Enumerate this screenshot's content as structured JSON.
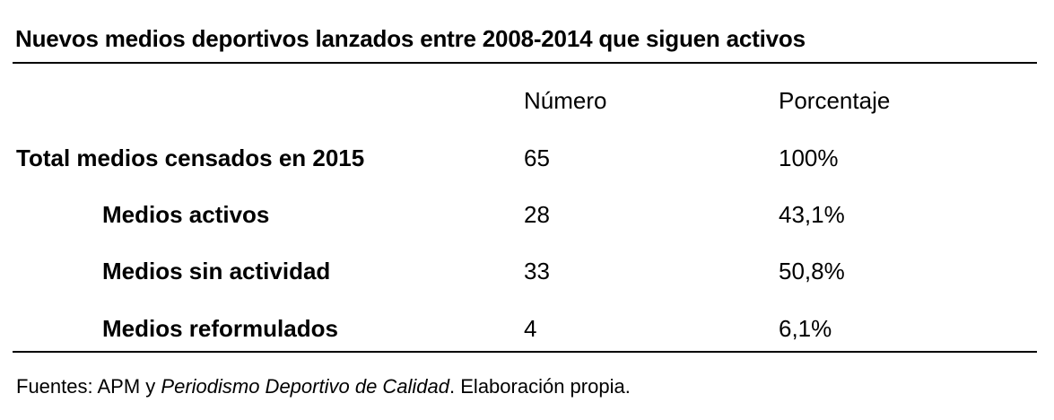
{
  "title": "Nuevos medios deportivos lanzados entre 2008-2014 que siguen activos",
  "table": {
    "headers": {
      "label": "",
      "number": "Número",
      "percent": "Porcentaje"
    },
    "rows": [
      {
        "label": "Total medios censados en 2015",
        "number": "65",
        "percent": "100%"
      },
      {
        "label": "Medios activos",
        "number": "28",
        "percent": "43,1%"
      },
      {
        "label": "Medios sin actividad",
        "number": "33",
        "percent": "50,8%"
      },
      {
        "label": "Medios reformulados",
        "number": "4",
        "percent": "6,1%"
      }
    ]
  },
  "source": {
    "prefix": "Fuentes: APM y ",
    "italic": "Periodismo Deportivo de Calidad",
    "suffix": ". Elaboración propia."
  }
}
